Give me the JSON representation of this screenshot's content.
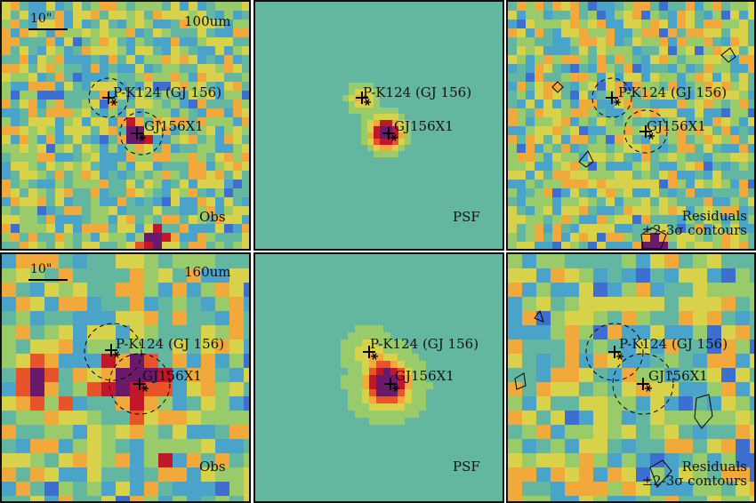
{
  "rows": [
    {
      "band": "100um",
      "scale_label": "10\"",
      "panels": [
        {
          "id": "obs",
          "caption": "Obs"
        },
        {
          "id": "psf",
          "caption": "PSF"
        },
        {
          "id": "res",
          "caption_line1": "Residuals",
          "caption_line2": "±2-3σ contours"
        }
      ],
      "sources": [
        {
          "name": "P-K124 (GJ 156)"
        },
        {
          "name": "GJ156X1"
        }
      ]
    },
    {
      "band": "160um",
      "scale_label": "10\"",
      "panels": [
        {
          "id": "obs",
          "caption": "Obs"
        },
        {
          "id": "psf",
          "caption": "PSF"
        },
        {
          "id": "res",
          "caption_line1": "Residuals",
          "caption_line2": "±2-3σ contours"
        }
      ],
      "sources": [
        {
          "name": "P-K124 (GJ 156)"
        },
        {
          "name": "GJ156X1"
        }
      ]
    }
  ],
  "colors": {
    "colormap": [
      "#3b3bb0",
      "#3d6fd0",
      "#4aa3c8",
      "#63b7a0",
      "#9acb6b",
      "#d8d24a",
      "#f0a93a",
      "#e8532a",
      "#c0172a",
      "#6a1a6a"
    ],
    "background": "#5fa0a0",
    "border": "#111111"
  }
}
